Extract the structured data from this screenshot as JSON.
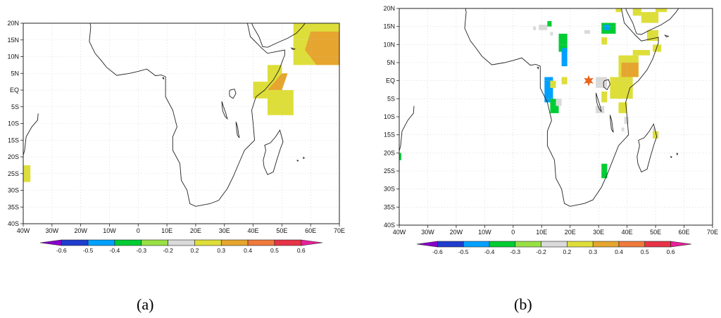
{
  "panels": [
    {
      "id": "a",
      "label": "(a)",
      "x_ticks": [
        "40W",
        "30W",
        "20W",
        "10W",
        "0",
        "10E",
        "20E",
        "30E",
        "40E",
        "50E",
        "60E",
        "70E"
      ],
      "y_ticks": [
        "20N",
        "15N",
        "10N",
        "5N",
        "EQ",
        "5S",
        "10S",
        "15S",
        "20S",
        "25S",
        "30S",
        "35S",
        "40S"
      ],
      "colorbar_labels": [
        "-0.6",
        "-0.5",
        "-0.4",
        "-0.3",
        "-0.2",
        "0.2",
        "0.3",
        "0.4",
        "0.5",
        "0.6"
      ],
      "cells": [
        {
          "lon": 54,
          "lat": 15,
          "w": 16,
          "h": 5,
          "val": 0.3
        },
        {
          "lon": 54,
          "lat": 7.5,
          "w": 16,
          "h": 7.5,
          "val": 0.3
        },
        {
          "lon": 45,
          "lat": 0,
          "w": 5,
          "h": 7.5,
          "val": 0.3
        },
        {
          "lon": 45,
          "lat": -7.5,
          "w": 9,
          "h": 7.5,
          "val": 0.3
        },
        {
          "lon": 50,
          "lat": -7.5,
          "w": 4,
          "h": 7.5,
          "val": 0.3
        },
        {
          "lon": 40,
          "lat": -2.5,
          "w": 5,
          "h": 5,
          "val": 0.3
        },
        {
          "lon": -40,
          "lat": -27.5,
          "w": 2.5,
          "h": 5,
          "val": 0.3
        }
      ],
      "polygons": [
        {
          "pts": [
            [
              60,
              17.5
            ],
            [
              70,
              17.5
            ],
            [
              70,
              7.5
            ],
            [
              62,
              7.5
            ],
            [
              58,
              12
            ]
          ],
          "val": 0.4
        },
        {
          "pts": [
            [
              45,
              0
            ],
            [
              50,
              0
            ],
            [
              52,
              5
            ],
            [
              50,
              5
            ]
          ],
          "val": 0.4
        }
      ]
    },
    {
      "id": "b",
      "label": "(b)",
      "x_ticks": [
        "40W",
        "30W",
        "20W",
        "10W",
        "0",
        "10E",
        "20E",
        "30E",
        "40E",
        "50E",
        "60E",
        "70E"
      ],
      "y_ticks": [
        "20N",
        "15N",
        "10N",
        "5N",
        "EQ",
        "5S",
        "10S",
        "15S",
        "20S",
        "25S",
        "30S",
        "35S",
        "40S"
      ],
      "colorbar_labels": [
        "-0.6",
        "-0.5",
        "-0.4",
        "-0.3",
        "-0.2",
        "0.2",
        "0.3",
        "0.4",
        "0.5",
        "0.6"
      ],
      "cells": [
        {
          "lon": 36,
          "lat": 19,
          "w": 2,
          "h": 1,
          "val": 0.3
        },
        {
          "lon": 42,
          "lat": 18,
          "w": 3,
          "h": 2,
          "val": 0.3
        },
        {
          "lon": 50,
          "lat": 19,
          "w": 4,
          "h": 1,
          "val": 0.3
        },
        {
          "lon": 9,
          "lat": 14,
          "w": 3,
          "h": 1.5,
          "val": 0.0
        },
        {
          "lon": 12,
          "lat": 15,
          "w": 1.5,
          "h": 1.5,
          "val": -0.3
        },
        {
          "lon": 13,
          "lat": 12.5,
          "w": 1,
          "h": 1,
          "val": 0.0
        },
        {
          "lon": 31,
          "lat": 13,
          "w": 5,
          "h": 3,
          "val": -0.3
        },
        {
          "lon": 32,
          "lat": 14,
          "w": 2,
          "h": 1.5,
          "val": -0.4
        },
        {
          "lon": 31,
          "lat": 10,
          "w": 2,
          "h": 2,
          "val": 0.3
        },
        {
          "lon": 25,
          "lat": 13,
          "w": 2,
          "h": 1,
          "val": 0.0
        },
        {
          "lon": 16,
          "lat": 8,
          "w": 3,
          "h": 5,
          "val": -0.3
        },
        {
          "lon": 17,
          "lat": 4,
          "w": 2,
          "h": 5,
          "val": -0.4
        },
        {
          "lon": 45,
          "lat": 16,
          "w": 6,
          "h": 3,
          "val": 0.3
        },
        {
          "lon": 47,
          "lat": 11,
          "w": 4,
          "h": 3,
          "val": 0.3
        },
        {
          "lon": 49,
          "lat": 8,
          "w": 3,
          "h": 2,
          "val": 0.3
        },
        {
          "lon": 42,
          "lat": 7,
          "w": 6,
          "h": 1.5,
          "val": 0.3
        },
        {
          "lon": 37,
          "lat": 1,
          "w": 7,
          "h": 6,
          "val": 0.3
        },
        {
          "lon": 38,
          "lat": 1,
          "w": 6,
          "h": 4,
          "val": 0.4
        },
        {
          "lon": 34,
          "lat": -5,
          "w": 8,
          "h": 6,
          "val": 0.3
        },
        {
          "lon": 29,
          "lat": -2,
          "w": 4,
          "h": 3,
          "val": 0.0
        },
        {
          "lon": 31,
          "lat": -6,
          "w": 2,
          "h": 3,
          "val": 0.3
        },
        {
          "lon": 29,
          "lat": -9,
          "w": 3,
          "h": 2,
          "val": 0.0
        },
        {
          "lon": 37,
          "lat": -9,
          "w": 3,
          "h": 3,
          "val": 0.3
        },
        {
          "lon": 39,
          "lat": -12,
          "w": 1.5,
          "h": 2,
          "val": 0.0
        },
        {
          "lon": 11,
          "lat": -6,
          "w": 3,
          "h": 7,
          "val": -0.4
        },
        {
          "lon": 13,
          "lat": -9,
          "w": 3,
          "h": 4,
          "val": -0.3
        },
        {
          "lon": 15,
          "lat": -7,
          "w": 2,
          "h": 2,
          "val": 0.0
        },
        {
          "lon": 13,
          "lat": -2,
          "w": 2,
          "h": 2,
          "val": 0.3
        },
        {
          "lon": 17,
          "lat": -1,
          "w": 2,
          "h": 2,
          "val": 0.3
        },
        {
          "lon": 49,
          "lat": -16,
          "w": 2,
          "h": 2,
          "val": 0.3
        },
        {
          "lon": 49,
          "lat": -14,
          "w": 1,
          "h": 1,
          "val": 0.0
        },
        {
          "lon": 31,
          "lat": -27,
          "w": 2,
          "h": 4,
          "val": -0.3
        },
        {
          "lon": -40,
          "lat": -22,
          "w": 0.7,
          "h": 2,
          "val": -0.3
        },
        {
          "lon": 7,
          "lat": 14,
          "w": 1,
          "h": 1,
          "val": 0.0
        },
        {
          "lon": 38,
          "lat": -14,
          "w": 1,
          "h": 1,
          "val": 0.0
        }
      ],
      "polygons": [],
      "marker": {
        "lon": 26.5,
        "lat": 0,
        "symbol": "star"
      }
    }
  ],
  "colors": {
    "-0.6": "#8800cc",
    "-0.5": "#1e3ccd",
    "-0.4": "#00a0ff",
    "-0.3": "#00cc33",
    "-0.2": "#99e044",
    "0.0": "#dadada",
    "0.3": "#dede3a",
    "0.4": "#e6a52e",
    "0.5": "#ef7a3c",
    "0.6": "#e83347",
    "pos_tip": "#e8209a",
    "star": "#e8641e",
    "coast": "#222222",
    "grid": "#c8c8c8"
  }
}
